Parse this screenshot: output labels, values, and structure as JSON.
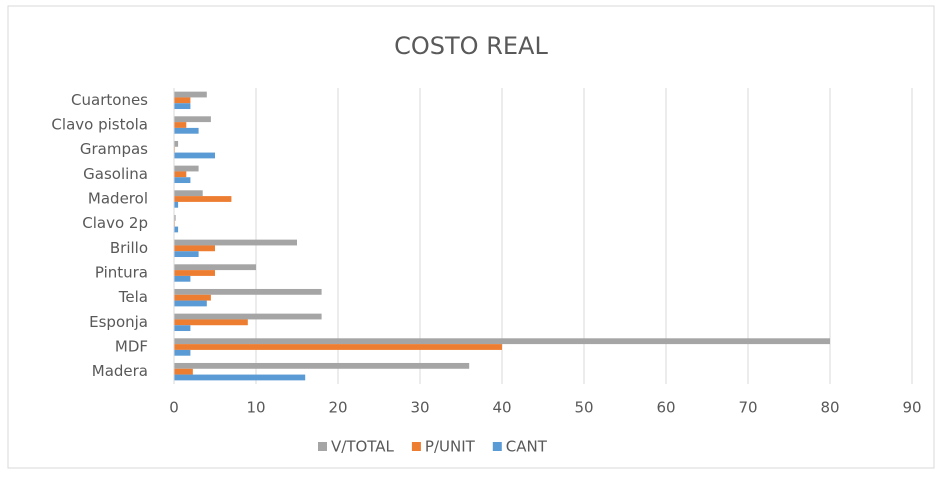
{
  "chart_data": {
    "type": "bar",
    "orientation": "horizontal",
    "title": "COSTO REAL",
    "categories": [
      "Madera",
      "MDF",
      "Esponja",
      "Tela",
      "Pintura",
      "Brillo",
      "Clavo 2p",
      "Maderol",
      "Gasolina",
      "Grampas",
      "Clavo pistola",
      "Cuartones"
    ],
    "series": [
      {
        "name": "V/TOTAL",
        "color": "#a5a5a5",
        "values": [
          36,
          80,
          18,
          18,
          10,
          15,
          0.2,
          3.5,
          3,
          0.5,
          4.5,
          4
        ]
      },
      {
        "name": "P/UNIT",
        "color": "#ed7d31",
        "values": [
          2.3,
          40,
          9,
          4.5,
          5,
          5,
          0.1,
          7,
          1.5,
          0.1,
          1.5,
          2
        ]
      },
      {
        "name": "CANT",
        "color": "#5b9bd5",
        "values": [
          16,
          2,
          2,
          4,
          2,
          3,
          0.5,
          0.5,
          2,
          5,
          3,
          2
        ]
      }
    ],
    "xlim": [
      0,
      90
    ],
    "xticks": [
      0,
      10,
      20,
      30,
      40,
      50,
      60,
      70,
      80,
      90
    ],
    "grid": true,
    "legend": "bottom"
  }
}
